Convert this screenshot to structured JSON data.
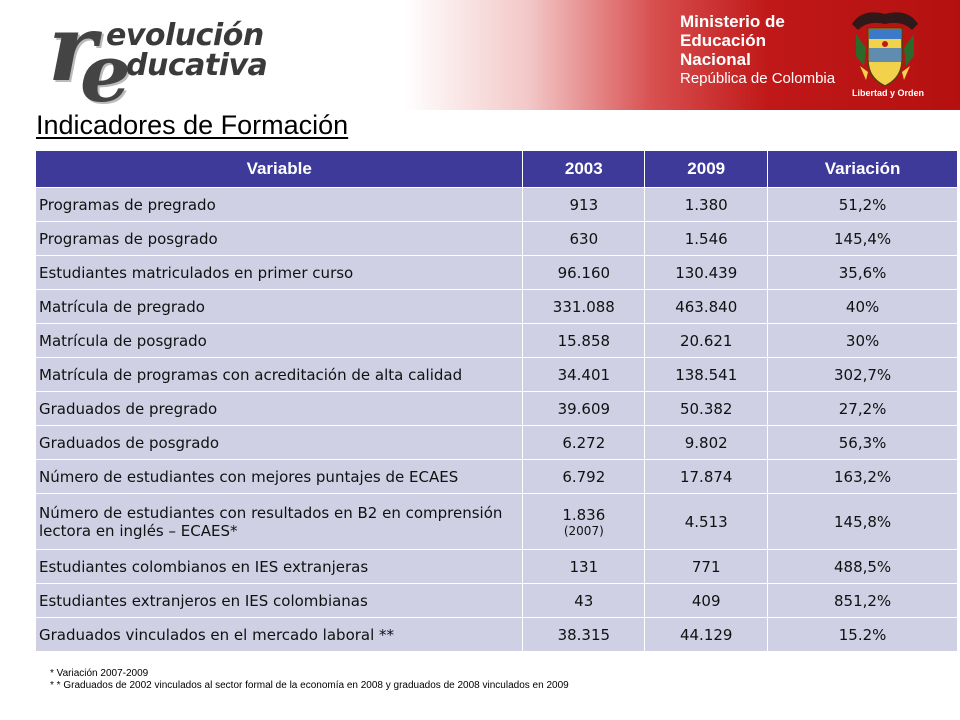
{
  "header": {
    "logo_left": {
      "letter_r": "r",
      "letter_e": "e",
      "word1": "evolución",
      "word2": "ducativa"
    },
    "ministry": {
      "line1": "Ministerio de",
      "line2": "Educación Nacional",
      "line3": "República de Colombia"
    },
    "shield_motto": "Libertad y Orden",
    "colors": {
      "header_red": "#c01818",
      "table_header": "#3d3a9a",
      "table_cell": "#cfd0e4"
    }
  },
  "title": "Indicadores de Formación",
  "table": {
    "headers": [
      "Variable",
      "2003",
      "2009",
      "Variación"
    ],
    "rows": [
      {
        "variable": "Programas de pregrado",
        "y2003": "913",
        "y2003_note": "",
        "y2009": "1.380",
        "variation": "51,2%"
      },
      {
        "variable": "Programas de posgrado",
        "y2003": "630",
        "y2003_note": "",
        "y2009": "1.546",
        "variation": "145,4%"
      },
      {
        "variable": "Estudiantes matriculados en primer curso",
        "y2003": "96.160",
        "y2003_note": "",
        "y2009": "130.439",
        "variation": "35,6%"
      },
      {
        "variable": "Matrícula de pregrado",
        "y2003": "331.088",
        "y2003_note": "",
        "y2009": "463.840",
        "variation": "40%"
      },
      {
        "variable": "Matrícula de posgrado",
        "y2003": "15.858",
        "y2003_note": "",
        "y2009": "20.621",
        "variation": "30%"
      },
      {
        "variable": "Matrícula de programas con acreditación de alta calidad",
        "y2003": "34.401",
        "y2003_note": "",
        "y2009": "138.541",
        "variation": "302,7%"
      },
      {
        "variable": "Graduados de pregrado",
        "y2003": "39.609",
        "y2003_note": "",
        "y2009": "50.382",
        "variation": "27,2%"
      },
      {
        "variable": "Graduados de posgrado",
        "y2003": "6.272",
        "y2003_note": "",
        "y2009": "9.802",
        "variation": "56,3%"
      },
      {
        "variable": "Número de estudiantes con mejores puntajes de ECAES",
        "y2003": "6.792",
        "y2003_note": "",
        "y2009": "17.874",
        "variation": "163,2%"
      },
      {
        "variable": "Número de estudiantes con resultados en B2 en comprensión lectora en inglés – ECAES*",
        "y2003": "1.836",
        "y2003_note": "(2007)",
        "y2009": "4.513",
        "variation": "145,8%"
      },
      {
        "variable": "Estudiantes colombianos en IES extranjeras",
        "y2003": "131",
        "y2003_note": "",
        "y2009": "771",
        "variation": "488,5%"
      },
      {
        "variable": "Estudiantes extranjeros en IES colombianas",
        "y2003": "43",
        "y2003_note": "",
        "y2009": "409",
        "variation": "851,2%"
      },
      {
        "variable": "Graduados vinculados en el mercado laboral **",
        "y2003": "38.315",
        "y2003_note": "",
        "y2009": "44.129",
        "variation": "15.2%"
      }
    ]
  },
  "footnotes": [
    "* Variación 2007-2009",
    "* * Graduados de 2002 vinculados  al sector formal de la economía en 2008 y graduados de 2008 vinculados  en 2009"
  ]
}
